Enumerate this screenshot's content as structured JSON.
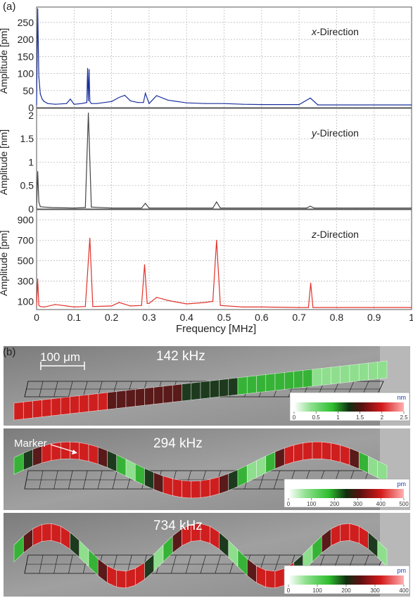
{
  "panel_a": {
    "label": "(a)",
    "xlabel": "Frequency [MHz]",
    "xticks": [
      "0",
      "0.1",
      "0.2",
      "0.3",
      "0.4",
      "0.5",
      "0.6",
      "0.7",
      "0.8",
      "0.9",
      "1"
    ]
  },
  "panel_b": {
    "label": "(b)",
    "scalebar_label": "100 μm",
    "marker_label": "Marker"
  },
  "colors": {
    "x_trace": "#1a2f9b",
    "y_trace": "#444444",
    "z_trace": "#e0322a",
    "green": "#3ec43e",
    "red": "#d62020",
    "panel_bg": "#8e8e8e"
  },
  "chart_data": [
    {
      "type": "line",
      "title": "x-Direction",
      "ylabel": "Amplitude [pm]",
      "xlim": [
        0,
        1
      ],
      "ylim": [
        0,
        295
      ],
      "yticks": [
        0,
        50,
        100,
        150,
        200,
        250
      ],
      "grid": true,
      "series": [
        {
          "x": [
            0,
            0.003,
            0.006,
            0.01,
            0.015,
            0.02,
            0.03,
            0.05,
            0.08,
            0.09,
            0.1,
            0.12,
            0.134,
            0.136,
            0.138,
            0.14,
            0.142,
            0.146,
            0.16,
            0.2,
            0.22,
            0.235,
            0.25,
            0.27,
            0.285,
            0.29,
            0.3,
            0.32,
            0.35,
            0.4,
            0.45,
            0.5,
            0.55,
            0.6,
            0.65,
            0.7,
            0.73,
            0.75,
            0.8,
            0.85,
            0.9,
            0.95,
            1.0
          ],
          "y": [
            8,
            290,
            90,
            40,
            25,
            18,
            12,
            10,
            12,
            25,
            10,
            12,
            15,
            115,
            20,
            112,
            18,
            12,
            12,
            18,
            30,
            36,
            20,
            15,
            15,
            42,
            12,
            35,
            22,
            14,
            12,
            12,
            10,
            9,
            9,
            9,
            28,
            8,
            8,
            8,
            8,
            8,
            8
          ]
        }
      ]
    },
    {
      "type": "line",
      "title": "y-Direction",
      "ylabel": "Amplitude [nm]",
      "xlim": [
        0,
        1
      ],
      "ylim": [
        0,
        2.15
      ],
      "yticks": [
        0,
        0.5,
        1,
        1.5,
        2
      ],
      "grid": true,
      "series": [
        {
          "x": [
            0,
            0.003,
            0.006,
            0.01,
            0.02,
            0.04,
            0.1,
            0.13,
            0.138,
            0.146,
            0.2,
            0.28,
            0.29,
            0.3,
            0.4,
            0.47,
            0.48,
            0.49,
            0.6,
            0.72,
            0.73,
            0.74,
            0.85,
            1.0
          ],
          "y": [
            0.02,
            0.8,
            0.15,
            0.05,
            0.04,
            0.03,
            0.02,
            0.03,
            2.05,
            0.04,
            0.02,
            0.02,
            0.12,
            0.02,
            0.02,
            0.02,
            0.15,
            0.02,
            0.02,
            0.02,
            0.06,
            0.02,
            0.02,
            0.02
          ]
        }
      ]
    },
    {
      "type": "line",
      "title": "z-Direction",
      "ylabel": "Amplitude [pm]",
      "xlim": [
        0,
        1
      ],
      "ylim": [
        20,
        1000
      ],
      "yticks": [
        100,
        300,
        500,
        700,
        900
      ],
      "grid": true,
      "series": [
        {
          "x": [
            0,
            0.003,
            0.006,
            0.01,
            0.02,
            0.05,
            0.1,
            0.13,
            0.142,
            0.15,
            0.2,
            0.22,
            0.25,
            0.28,
            0.288,
            0.295,
            0.3,
            0.32,
            0.35,
            0.4,
            0.45,
            0.47,
            0.48,
            0.49,
            0.55,
            0.6,
            0.7,
            0.725,
            0.731,
            0.737,
            0.8,
            0.9,
            1.0
          ],
          "y": [
            60,
            320,
            60,
            50,
            45,
            70,
            45,
            50,
            720,
            50,
            55,
            90,
            55,
            60,
            460,
            80,
            80,
            140,
            110,
            75,
            90,
            100,
            700,
            60,
            45,
            45,
            40,
            40,
            280,
            40,
            40,
            40,
            40
          ]
        }
      ]
    }
  ],
  "modes": [
    {
      "freq_label": "142 kHz",
      "colorbar_unit": "nm",
      "colorbar_ticks": [
        "0",
        "0.5",
        "1",
        "1.5",
        "2",
        "2.5"
      ]
    },
    {
      "freq_label": "294 kHz",
      "colorbar_unit": "pm",
      "colorbar_ticks": [
        "0",
        "100",
        "200",
        "300",
        "400",
        "500"
      ]
    },
    {
      "freq_label": "734 kHz",
      "colorbar_unit": "pm",
      "colorbar_ticks": [
        "0",
        "100",
        "200",
        "300",
        "400"
      ]
    }
  ]
}
